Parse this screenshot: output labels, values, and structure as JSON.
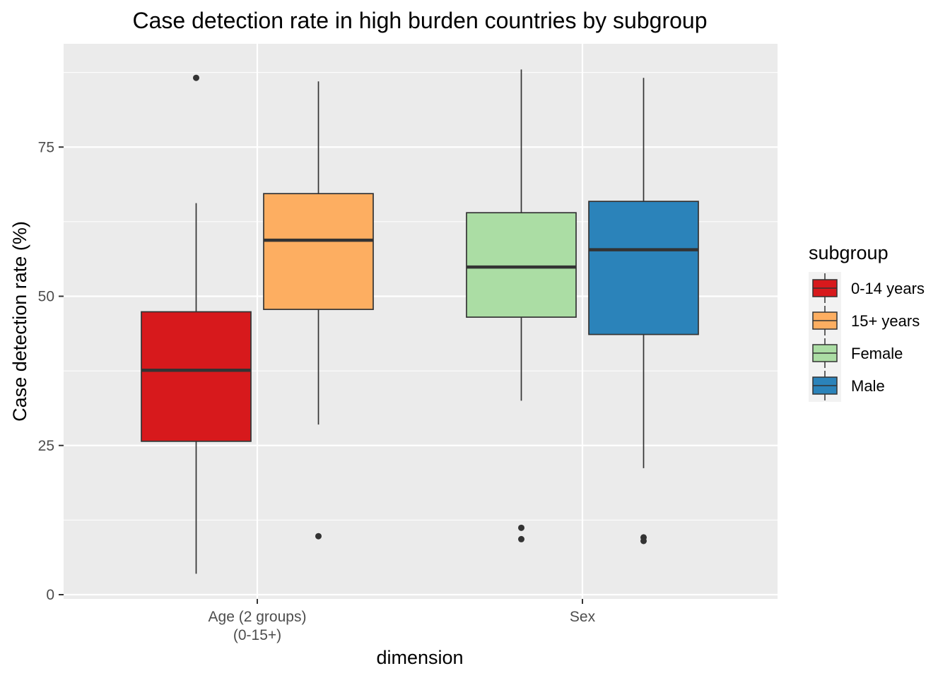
{
  "chart_data": {
    "type": "boxplot",
    "title": "Case detection rate in high burden countries by subgroup",
    "xlabel": "dimension",
    "ylabel": "Case detection rate (%)",
    "ylim": [
      -0.5,
      91.5
    ],
    "y_ticks": [
      0,
      25,
      50,
      75
    ],
    "y_tick_labels": [
      "0",
      "25",
      "50",
      "75"
    ],
    "grid": true,
    "legend_title": "subgroup",
    "legend_position": "right",
    "categories": [
      {
        "key": "age",
        "lines": [
          "Age (2 groups)",
          "(0-15+)"
        ]
      },
      {
        "key": "sex",
        "lines": [
          "Sex"
        ]
      }
    ],
    "series": [
      {
        "name": "0-14 years",
        "category": "age",
        "slot": 0,
        "color": "#d7191c",
        "min": 3.5,
        "q1": 25.7,
        "median": 37.6,
        "q3": 47.4,
        "max": 65.6,
        "outliers": [
          86.6
        ]
      },
      {
        "name": "15+ years",
        "category": "age",
        "slot": 1,
        "color": "#fdae61",
        "min": 28.5,
        "q1": 47.8,
        "median": 59.4,
        "q3": 67.2,
        "max": 86.0,
        "outliers": [
          9.8
        ]
      },
      {
        "name": "Female",
        "category": "sex",
        "slot": 0,
        "color": "#abdda4",
        "min": 32.5,
        "q1": 46.5,
        "median": 54.9,
        "q3": 64.0,
        "max": 88.0,
        "outliers": [
          11.2,
          9.3
        ]
      },
      {
        "name": "Male",
        "category": "sex",
        "slot": 1,
        "color": "#2b83ba",
        "min": 21.2,
        "q1": 43.6,
        "median": 57.8,
        "q3": 65.9,
        "max": 86.6,
        "outliers": [
          9.6,
          9.0
        ]
      }
    ]
  }
}
